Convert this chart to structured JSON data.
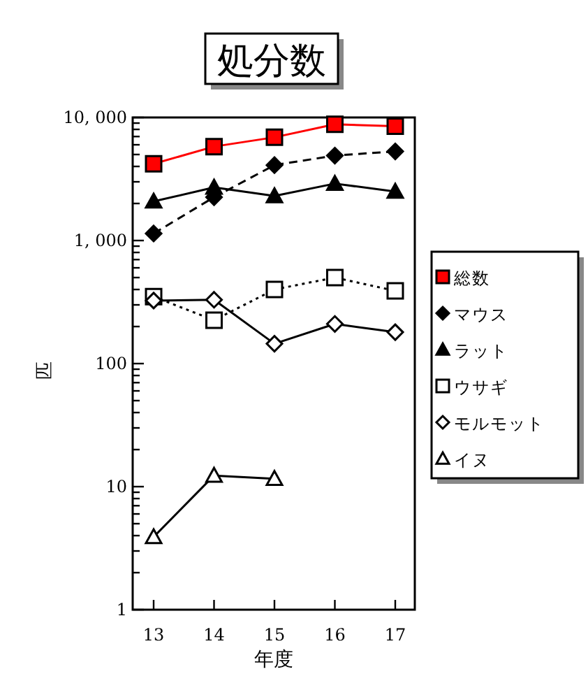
{
  "chart_data": {
    "type": "line",
    "title": "処分数",
    "xlabel": "年度",
    "ylabel": "匹",
    "log": "y",
    "legend": "right",
    "categories": [
      "13",
      "14",
      "15",
      "16",
      "17"
    ],
    "ylim": [
      1,
      10000
    ],
    "yticks": [
      1,
      {
        "value": 2,
        "label": null
      },
      {
        "value": 3,
        "label": null
      },
      {
        "value": 4,
        "label": null
      },
      {
        "value": 5,
        "label": null
      },
      {
        "value": 6,
        "label": null
      },
      {
        "value": 7,
        "label": null
      },
      {
        "value": 8,
        "label": null
      },
      {
        "value": 9,
        "label": null
      },
      10,
      {
        "value": 20,
        "label": null
      },
      {
        "value": 30,
        "label": null
      },
      {
        "value": 40,
        "label": null
      },
      {
        "value": 50,
        "label": null
      },
      {
        "value": 60,
        "label": null
      },
      {
        "value": 70,
        "label": null
      },
      {
        "value": 80,
        "label": null
      },
      {
        "value": 90,
        "label": null
      },
      100,
      {
        "value": 200,
        "label": null
      },
      {
        "value": 300,
        "label": null
      },
      {
        "value": 400,
        "label": null
      },
      {
        "value": 500,
        "label": null
      },
      {
        "value": 600,
        "label": null
      },
      {
        "value": 700,
        "label": null
      },
      {
        "value": 800,
        "label": null
      },
      {
        "value": 900,
        "label": null
      },
      {
        "value": 1000,
        "label": "1, 000"
      },
      {
        "value": 2000,
        "label": null
      },
      {
        "value": 3000,
        "label": null
      },
      {
        "value": 4000,
        "label": null
      },
      {
        "value": 5000,
        "label": null
      },
      {
        "value": 6000,
        "label": null
      },
      {
        "value": 7000,
        "label": null
      },
      {
        "value": 8000,
        "label": null
      },
      {
        "value": 9000,
        "label": null
      },
      {
        "value": 10000,
        "label": "10, 000"
      }
    ],
    "series": [
      {
        "name": "総数",
        "color": "#ff0000",
        "marker": "square",
        "line_style": "solid",
        "values": [
          4200,
          5800,
          6900,
          8800,
          8500
        ]
      },
      {
        "name": "マウス",
        "color": "#000000",
        "marker": "diamond",
        "line_style": "dashed",
        "values": [
          1140,
          2250,
          4100,
          4900,
          5300
        ]
      },
      {
        "name": "ラット",
        "color": "#000000",
        "marker": "triangle",
        "line_style": "solid",
        "values": [
          2080,
          2700,
          2300,
          2900,
          2500
        ]
      },
      {
        "name": "ウサギ",
        "color": "#000000",
        "marker": "square",
        "line_style": "dotted",
        "values": [
          350,
          225,
          400,
          500,
          390
        ]
      },
      {
        "name": "モルモット",
        "color": "#000000",
        "marker": "diamond",
        "line_style": "solid",
        "values": [
          325,
          330,
          145,
          210,
          180
        ]
      },
      {
        "name": "イヌ",
        "color": "#000000",
        "marker": "triangle",
        "line_style": "solid",
        "values": [
          3.9,
          12.3,
          11.6,
          null,
          null
        ]
      }
    ]
  }
}
